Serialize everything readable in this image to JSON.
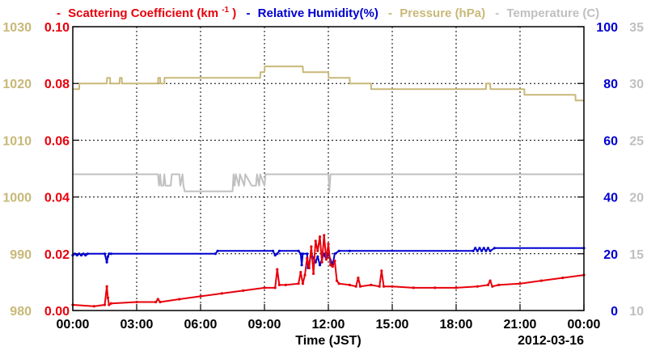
{
  "chart_data": {
    "type": "line",
    "title_parts": {
      "scattering_label": "Scattering Coefficient (km",
      "scattering_exp": "-1",
      "scattering_close": ")",
      "humidity_label": "Relative Humidity(%)",
      "pressure_label": "Pressure (hPa)",
      "temperature_label": "Temperature (C)",
      "dash": "-"
    },
    "xlabel": "Time (JST)",
    "date_label": "2012-03-16",
    "x_ticks": [
      "00:00",
      "03:00",
      "06:00",
      "09:00",
      "12:00",
      "15:00",
      "18:00",
      "21:00",
      "00:00"
    ],
    "xlim_hours": [
      0,
      24
    ],
    "grid": true,
    "axes": {
      "pressure": {
        "ticks": [
          "980",
          "990",
          "1000",
          "1010",
          "1020",
          "1030"
        ],
        "range": [
          980,
          1030
        ],
        "color": "#c8b878"
      },
      "scattering": {
        "ticks": [
          "0.00",
          "0.02",
          "0.04",
          "0.06",
          "0.08",
          "0.10"
        ],
        "range": [
          0,
          0.1
        ],
        "color": "#e8000b"
      },
      "humidity": {
        "ticks": [
          "0",
          "20",
          "40",
          "60",
          "80",
          "100"
        ],
        "range": [
          0,
          100
        ],
        "color": "#0000d0"
      },
      "temperature": {
        "ticks": [
          "10",
          "15",
          "20",
          "25",
          "30",
          "35"
        ],
        "range": [
          10,
          35
        ],
        "color": "#c0c0c0"
      }
    },
    "series": [
      {
        "name": "Pressure (hPa)",
        "axis": "pressure",
        "color": "#c8b878",
        "x": [
          0.0,
          0.3,
          0.31,
          1.6,
          1.61,
          1.75,
          1.76,
          2.2,
          2.21,
          2.3,
          2.31,
          4.0,
          4.01,
          4.1,
          4.11,
          4.3,
          4.31,
          4.4,
          4.41,
          8.8,
          8.81,
          9.0,
          9.01,
          10.8,
          10.81,
          12.0,
          12.01,
          13.0,
          13.01,
          14.0,
          14.01,
          19.4,
          19.41,
          19.6,
          19.61,
          21.2,
          21.21,
          23.6,
          23.61,
          24.0
        ],
        "y": [
          1019.0,
          1019.0,
          1020.0,
          1020.0,
          1021.0,
          1021.0,
          1020.0,
          1020.0,
          1021.0,
          1021.0,
          1020.0,
          1020.0,
          1021.0,
          1021.0,
          1020.0,
          1020.0,
          1021.0,
          1021.0,
          1021.0,
          1021.0,
          1022.0,
          1022.0,
          1023.0,
          1023.0,
          1022.0,
          1022.0,
          1021.0,
          1021.0,
          1020.0,
          1020.0,
          1019.0,
          1019.0,
          1020.0,
          1020.0,
          1019.0,
          1019.0,
          1018.0,
          1018.0,
          1017.0,
          1017.0
        ]
      },
      {
        "name": "Temperature (C)",
        "axis": "temperature",
        "color": "#c0c0c0",
        "x": [
          0.0,
          4.0,
          4.05,
          4.1,
          4.15,
          4.25,
          4.3,
          4.35,
          4.4,
          4.6,
          4.65,
          5.0,
          5.05,
          5.15,
          5.2,
          5.25,
          5.3,
          7.5,
          7.55,
          7.6,
          7.65,
          7.8,
          7.85,
          8.05,
          8.1,
          8.4,
          8.45,
          8.6,
          8.65,
          8.75,
          8.8,
          9.0,
          9.05,
          9.2,
          9.25,
          12.0,
          12.05,
          12.1,
          12.15,
          24.0
        ],
        "y": [
          22.0,
          22.0,
          21.0,
          22.0,
          21.0,
          21.0,
          22.0,
          21.0,
          21.0,
          21.0,
          22.0,
          22.0,
          21.0,
          22.0,
          21.0,
          20.5,
          20.5,
          20.5,
          22.0,
          21.0,
          22.0,
          21.0,
          22.0,
          21.0,
          22.0,
          21.0,
          21.0,
          21.0,
          22.0,
          21.0,
          22.0,
          21.0,
          22.0,
          22.0,
          22.0,
          22.0,
          20.5,
          22.0,
          22.0,
          22.0
        ]
      },
      {
        "name": "Relative Humidity(%)",
        "axis": "humidity",
        "color": "#0000d0",
        "x": [
          0.0,
          0.1,
          0.2,
          0.3,
          0.4,
          0.5,
          0.6,
          0.7,
          1.5,
          1.6,
          1.65,
          1.7,
          1.8,
          6.7,
          6.8,
          9.4,
          9.5,
          9.6,
          9.7,
          10.6,
          10.7,
          10.75,
          10.8,
          11.0,
          11.05,
          11.2,
          11.4,
          11.5,
          11.6,
          11.8,
          11.9,
          12.0,
          12.2,
          12.3,
          12.5,
          13.0,
          18.8,
          18.9,
          19.0,
          19.1,
          19.2,
          19.3,
          19.4,
          19.5,
          19.6,
          19.8,
          24.0
        ],
        "y": [
          19.5,
          20.0,
          19.5,
          20.0,
          19.5,
          20.0,
          19.5,
          20.0,
          20.0,
          17.0,
          19.0,
          20.0,
          20.0,
          20.0,
          21.0,
          21.0,
          19.5,
          20.0,
          21.0,
          21.0,
          20.0,
          16.0,
          20.0,
          20.0,
          15.0,
          20.0,
          17.0,
          19.0,
          16.0,
          20.0,
          18.0,
          20.0,
          16.0,
          20.0,
          21.0,
          21.0,
          21.0,
          22.0,
          21.0,
          22.0,
          21.0,
          22.0,
          21.0,
          22.0,
          21.0,
          22.0,
          22.0
        ]
      },
      {
        "name": "Scattering Coefficient (km-1)",
        "axis": "scattering",
        "color": "#e8000b",
        "x": [
          0.0,
          1.0,
          1.5,
          1.6,
          1.65,
          1.7,
          1.8,
          3.0,
          3.9,
          4.0,
          4.1,
          5.0,
          6.0,
          7.0,
          8.0,
          9.0,
          9.5,
          9.6,
          9.7,
          10.0,
          10.6,
          10.7,
          10.8,
          10.9,
          11.0,
          11.1,
          11.2,
          11.3,
          11.4,
          11.5,
          11.6,
          11.7,
          11.8,
          11.9,
          12.0,
          12.1,
          12.2,
          12.3,
          12.4,
          12.5,
          13.0,
          13.3,
          13.4,
          13.5,
          14.0,
          14.4,
          14.5,
          14.6,
          15.0,
          16.0,
          17.0,
          18.0,
          19.0,
          19.5,
          19.6,
          19.7,
          20.0,
          21.0,
          22.0,
          23.0,
          24.0
        ],
        "y": [
          0.002,
          0.0015,
          0.002,
          0.0085,
          0.0045,
          0.002,
          0.0025,
          0.003,
          0.003,
          0.004,
          0.003,
          0.004,
          0.005,
          0.006,
          0.007,
          0.008,
          0.008,
          0.0145,
          0.009,
          0.009,
          0.0095,
          0.0135,
          0.0095,
          0.0125,
          0.0185,
          0.015,
          0.0225,
          0.013,
          0.0245,
          0.021,
          0.026,
          0.017,
          0.0265,
          0.018,
          0.0235,
          0.016,
          0.0155,
          0.0175,
          0.0105,
          0.0095,
          0.009,
          0.0085,
          0.0115,
          0.0085,
          0.009,
          0.0085,
          0.014,
          0.0085,
          0.0085,
          0.008,
          0.008,
          0.008,
          0.0085,
          0.009,
          0.0105,
          0.0085,
          0.009,
          0.0095,
          0.0105,
          0.0115,
          0.0125
        ]
      }
    ]
  }
}
